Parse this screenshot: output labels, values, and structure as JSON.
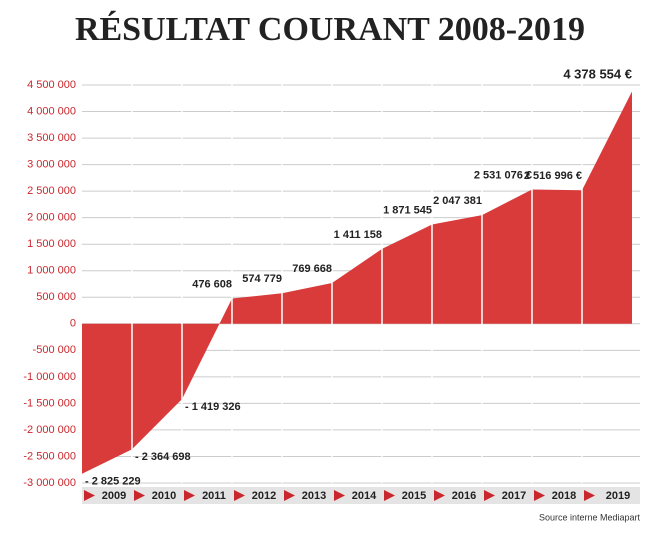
{
  "chart_data": {
    "type": "area",
    "title": "RÉSULTAT COURANT 2008-2019",
    "categories": [
      null,
      "2009",
      "2010",
      "2011",
      "2012",
      "2013",
      "2014",
      "2015",
      "2016",
      "2017",
      "2018",
      "2019"
    ],
    "values": [
      -2825229,
      -2364698,
      -1419326,
      476608,
      574779,
      769668,
      1411158,
      1871545,
      2047381,
      2531076,
      2516996,
      4378554
    ],
    "value_labels": [
      "- 2 825 229",
      "- 2 364 698",
      "- 1 419 326",
      "476 608",
      "574 779",
      "769 668",
      "1 411 158",
      "1 871 545",
      "2 047 381",
      "2 531 076 €",
      "2 516 996 €",
      "4 378 554 €"
    ],
    "color": "#d93a3a",
    "ylim": [
      -3000000,
      4500000
    ],
    "yticks": [
      {
        "value": -3000000,
        "label": "-3 000 000"
      },
      {
        "value": -2500000,
        "label": "-2 500 000"
      },
      {
        "value": -2000000,
        "label": "-2 000 000"
      },
      {
        "value": -1500000,
        "label": "-1 500 000"
      },
      {
        "value": -1000000,
        "label": "-1 000 000"
      },
      {
        "value": -500000,
        "label": "-500 000"
      },
      0,
      {
        "value": 500000,
        "label": "500 000"
      },
      {
        "value": 1000000,
        "label": "1 000 000"
      },
      {
        "value": 1500000,
        "label": "1 500 000"
      },
      {
        "value": 2000000,
        "label": "2 000 000"
      },
      {
        "value": 2500000,
        "label": "2 500 000"
      },
      {
        "value": 3000000,
        "label": "3 000 000"
      },
      {
        "value": 3500000,
        "label": "3 500 000"
      },
      {
        "value": 4000000,
        "label": "4 000 000"
      },
      {
        "value": 4500000,
        "label": "4 500 000"
      }
    ],
    "grid": true,
    "source": "Source interne Mediapart"
  }
}
